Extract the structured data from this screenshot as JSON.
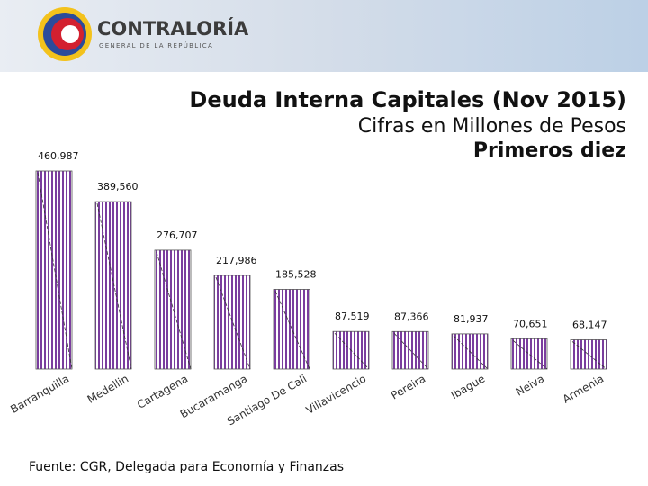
{
  "header": {
    "brand": "CONTRALORÍA",
    "tagline": "GENERAL DE LA REPÚBLICA"
  },
  "chart_data": {
    "type": "bar",
    "title": "Deuda Interna Capitales (Nov 2015)",
    "subtitle": "Cifras en Millones de Pesos",
    "subtitle2": "Primeros diez",
    "categories": [
      "Barranquilla",
      "Medellin",
      "Cartagena",
      "Bucaramanga",
      "Santiago De Cali",
      "Villavicencio",
      "Pereira",
      "Ibague",
      "Neiva",
      "Armenia"
    ],
    "values": [
      460987,
      389560,
      276707,
      217986,
      185528,
      87519,
      87366,
      81937,
      70651,
      68147
    ],
    "value_labels": [
      "460,987",
      "389,560",
      "276,707",
      "217,986",
      "185,528",
      "87,519",
      "87,366",
      "81,937",
      "70,651",
      "68,147"
    ],
    "color": "#7a3d9e"
  },
  "footer": {
    "source": "Fuente: CGR, Delegada para Economía y Finanzas"
  }
}
